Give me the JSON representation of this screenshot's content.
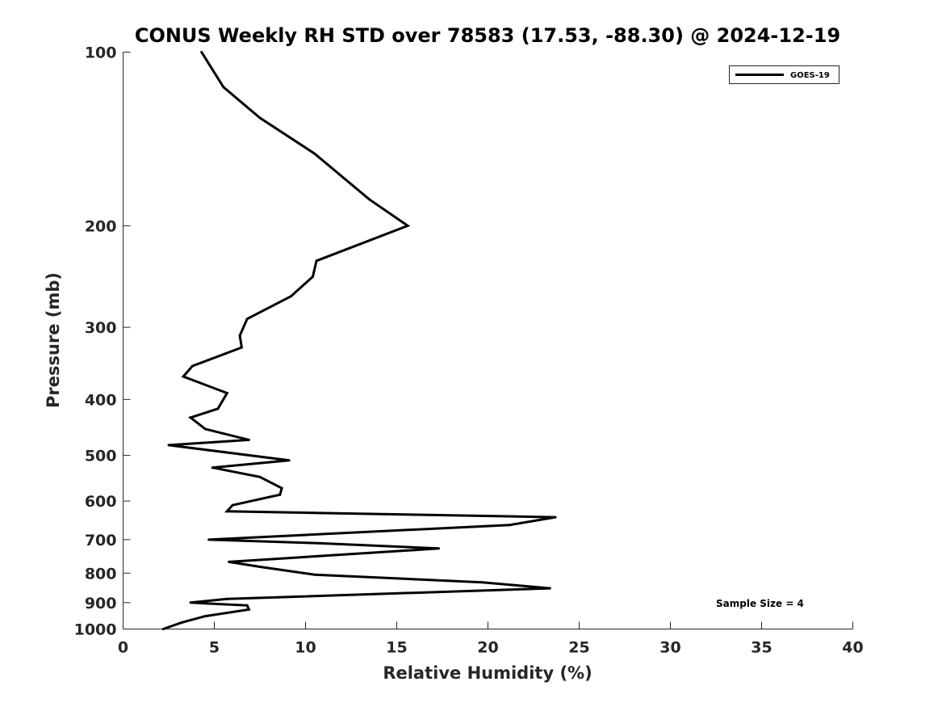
{
  "chart_data": {
    "type": "line",
    "title": "CONUS Weekly RH STD over 78583 (17.53, -88.30) @ 2024-12-19",
    "xlabel": "Relative Humidity (%)",
    "ylabel": "Pressure (mb)",
    "xlim": [
      0,
      40
    ],
    "ylim": [
      100,
      1000
    ],
    "yscale": "log",
    "y_reversed": true,
    "grid": false,
    "x_ticks": [
      0,
      5,
      10,
      15,
      20,
      25,
      30,
      35,
      40
    ],
    "y_ticks": [
      100,
      200,
      300,
      400,
      500,
      600,
      700,
      800,
      900,
      1000
    ],
    "legend": {
      "placement": "top-right",
      "entries": [
        "GOES-19"
      ]
    },
    "annotation": "Sample Size = 4",
    "series": [
      {
        "name": "GOES-19",
        "color": "#000000",
        "x": [
          2.2,
          3.2,
          4.5,
          6.9,
          6.8,
          3.7,
          5.7,
          23.4,
          19.7,
          10.5,
          7.5,
          5.8,
          17.3,
          10.7,
          4.7,
          21.2,
          23.7,
          5.7,
          6.0,
          8.6,
          8.7,
          7.5,
          4.9,
          9.1,
          2.5,
          6.9,
          4.5,
          3.7,
          5.2,
          5.7,
          3.3,
          3.8,
          6.5,
          6.4,
          6.8,
          9.2,
          10.4,
          10.6,
          15.6,
          13.5,
          10.5,
          7.5,
          5.5,
          4.3
        ],
        "y": [
          1000,
          975,
          950,
          925,
          910,
          900,
          887,
          850,
          830,
          805,
          780,
          765,
          725,
          710,
          700,
          660,
          640,
          625,
          610,
          585,
          570,
          545,
          525,
          510,
          480,
          470,
          450,
          430,
          415,
          390,
          365,
          350,
          325,
          310,
          290,
          265,
          245,
          230,
          200,
          180,
          150,
          130,
          115,
          100
        ]
      }
    ]
  }
}
